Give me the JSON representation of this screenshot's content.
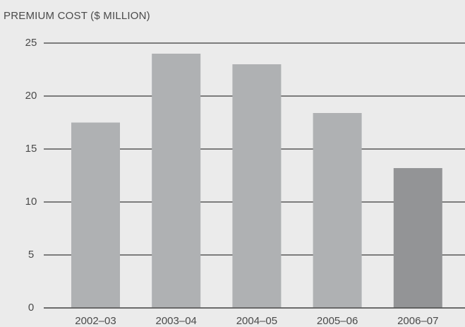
{
  "chart_data": {
    "type": "bar",
    "ylabel": "PREMIUM COST ($ MILLION)",
    "categories": [
      "2002–03",
      "2003–04",
      "2004–05",
      "2005–06",
      "2006–07"
    ],
    "values": [
      17.5,
      24.0,
      23.0,
      18.4,
      13.2
    ],
    "yticks": [
      0,
      5,
      10,
      15,
      20,
      25
    ],
    "ylim": [
      0,
      25
    ],
    "grid": true,
    "colors": {
      "bar": "#afb1b3",
      "highlight_bar": "#939496",
      "gridline": "#3a3a3a",
      "background": "#ebebeb"
    },
    "highlight_index": 4
  }
}
